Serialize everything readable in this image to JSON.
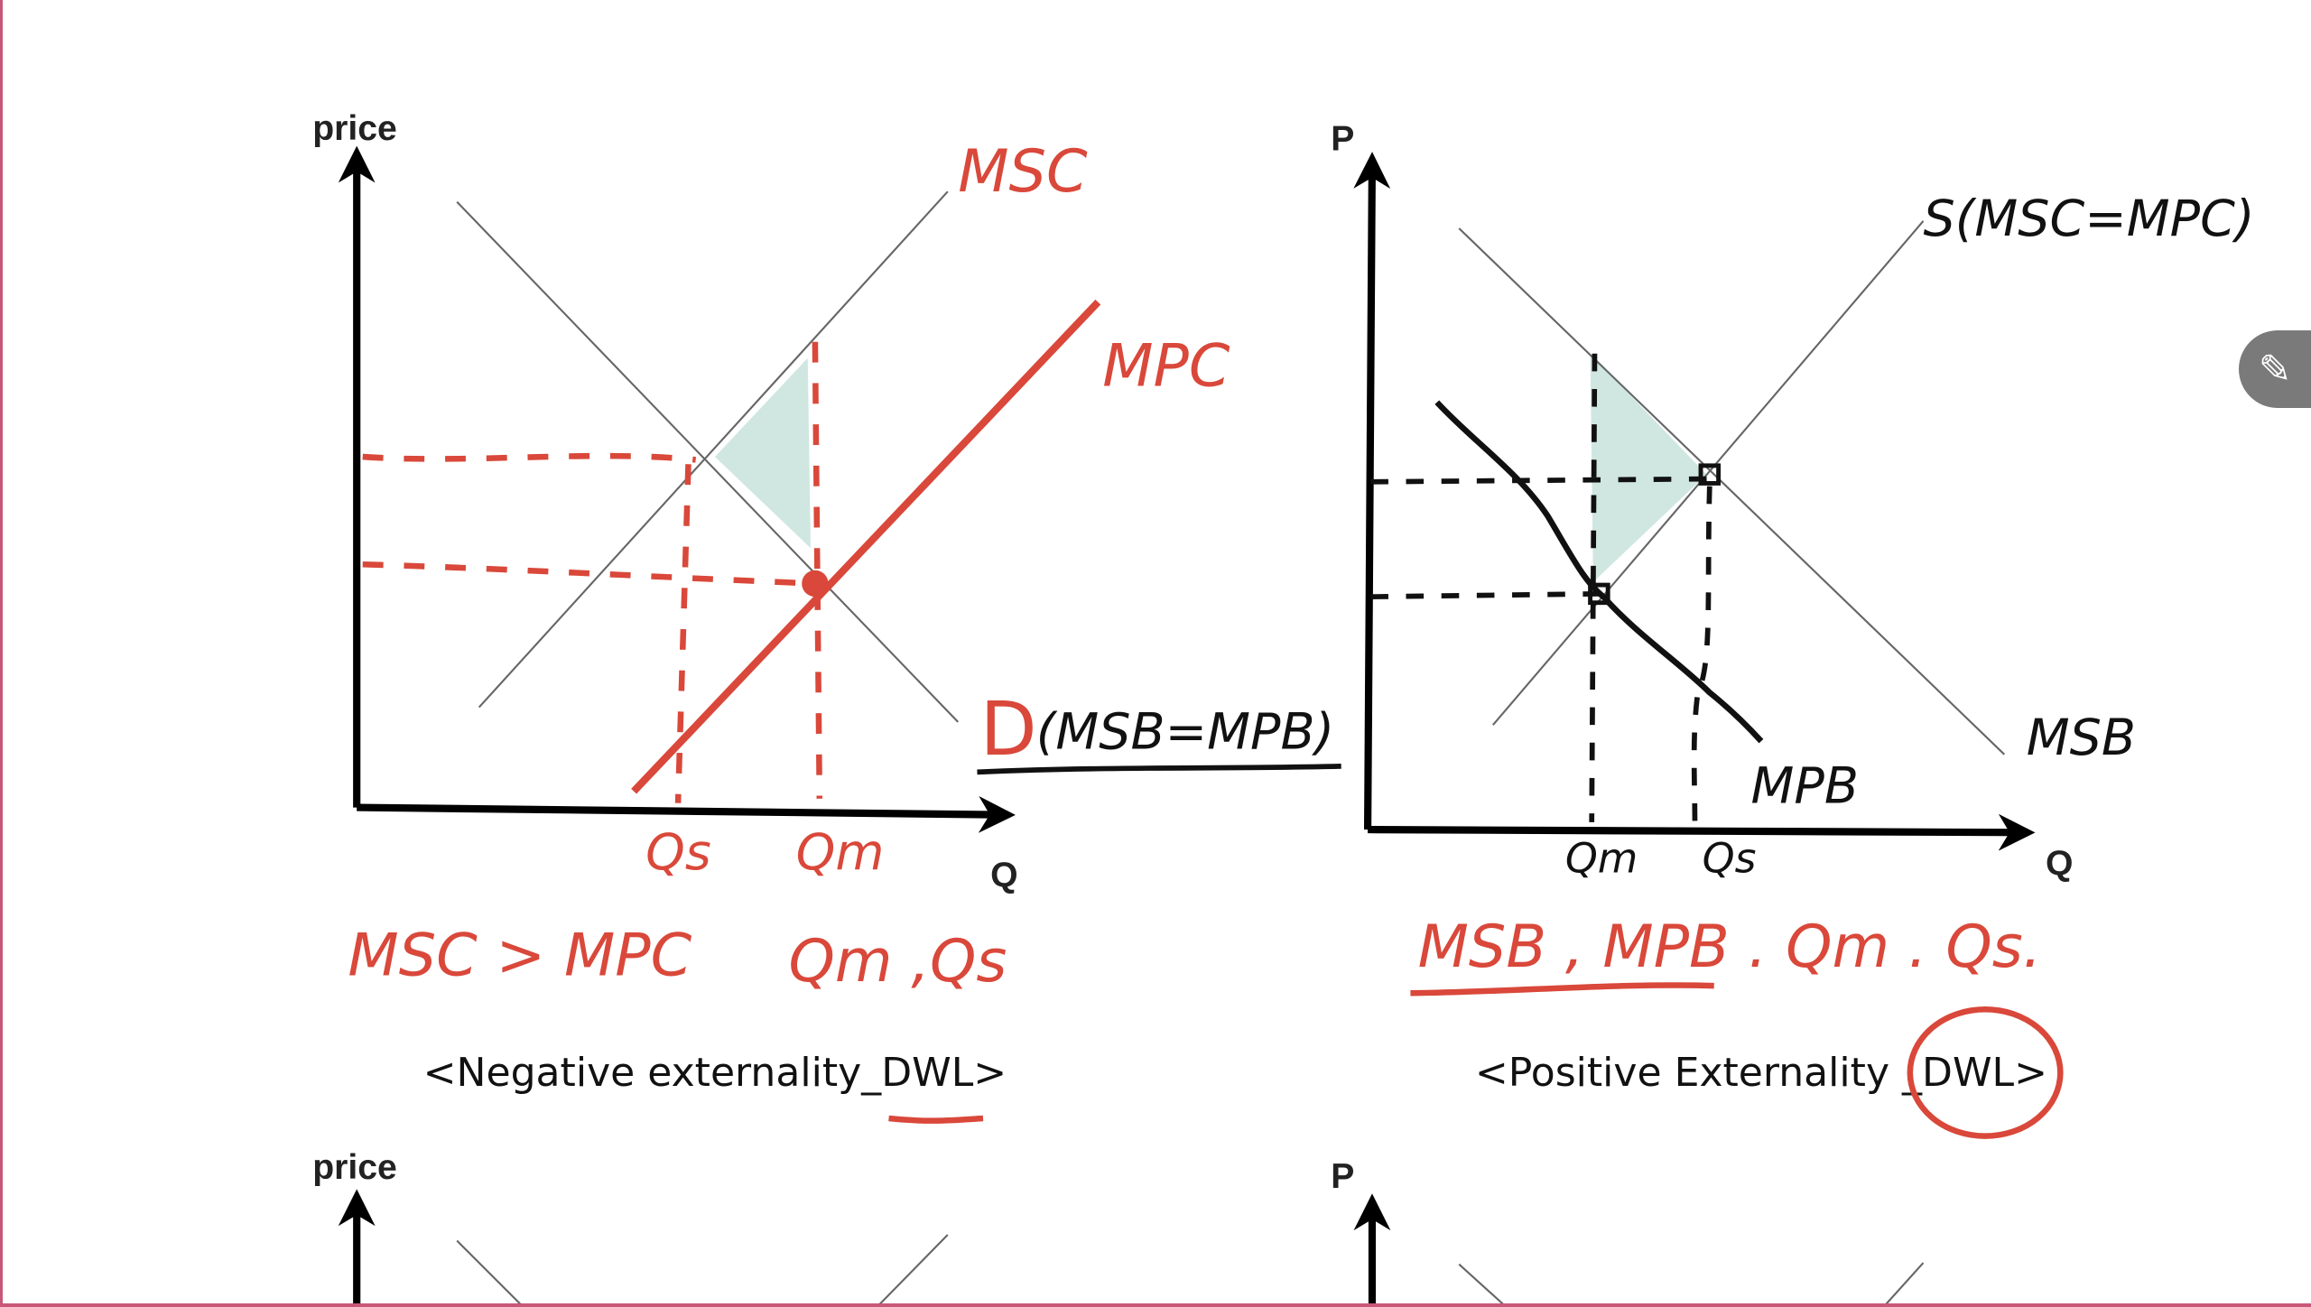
{
  "negative": {
    "y_axis_label": "price",
    "x_axis_label": "Q",
    "curve_msc": "MSC",
    "curve_mpc": "MPC",
    "demand_label_d": "D",
    "demand_label_rest": "(MSB=MPB)",
    "q_social": "Qs",
    "q_market": "Qm",
    "note_left": "MSC > MPC",
    "note_right": "Qm ,Qs",
    "caption": "<Negative externality_DWL>"
  },
  "positive": {
    "y_axis_label": "P",
    "x_axis_label": "Q",
    "supply_label": "S(MSC=MPC)",
    "curve_msb": "MSB",
    "curve_mpb": "MPB",
    "q_market": "Qm",
    "q_social": "Qs",
    "note": "MSB , MPB . Qm . Qs.",
    "caption": "<Positive Externality _DWL>"
  },
  "bottom": {
    "left_y_axis_label": "price",
    "right_y_axis_label": "P"
  },
  "toolbar": {
    "pencil_icon": "pencil-icon"
  },
  "colors": {
    "ink_red": "#d9483a",
    "shade_teal": "#a9d3c8",
    "border_pink": "#c9577a"
  }
}
